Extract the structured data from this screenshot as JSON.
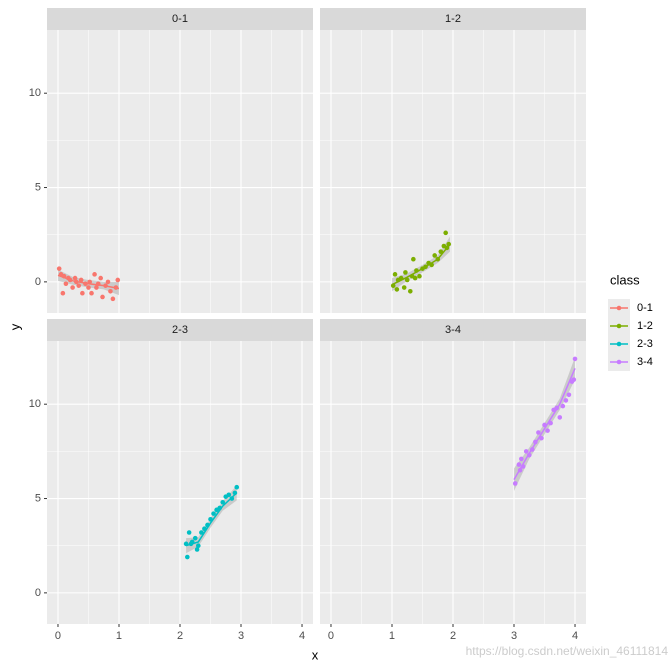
{
  "chart_data": {
    "type": "scatter",
    "facet": true,
    "xlabel": "x",
    "ylabel": "y",
    "legend_title": "class",
    "legend": "right",
    "grid": true,
    "xlim": [
      -0.18,
      4.18
    ],
    "xticks": [
      0,
      1,
      2,
      3,
      4
    ],
    "ylim": [
      -1.65,
      13.35
    ],
    "yticks": [
      0,
      5,
      10
    ],
    "watermark": "https://blog.csdn.net/weixin_46111814",
    "series": [
      {
        "name": "0-1",
        "color": "#F8766D",
        "x": [
          0.02,
          0.05,
          0.08,
          0.1,
          0.13,
          0.17,
          0.2,
          0.24,
          0.28,
          0.3,
          0.34,
          0.38,
          0.4,
          0.45,
          0.5,
          0.52,
          0.55,
          0.6,
          0.63,
          0.66,
          0.7,
          0.73,
          0.78,
          0.82,
          0.86,
          0.9,
          0.95,
          0.98
        ],
        "values": [
          0.7,
          0.4,
          -0.6,
          0.3,
          -0.1,
          0.2,
          0.1,
          -0.3,
          0.2,
          0.0,
          -0.2,
          0.1,
          -0.6,
          -0.1,
          -0.3,
          0.0,
          -0.6,
          0.4,
          -0.3,
          -0.1,
          0.2,
          -0.8,
          -0.2,
          0.0,
          -0.5,
          -0.9,
          -0.3,
          0.1
        ],
        "fit": {
          "x": [
            0,
            0.25,
            0.5,
            0.75,
            1
          ],
          "values": [
            0.35,
            0.05,
            -0.1,
            -0.2,
            -0.35
          ],
          "lower": [
            0.05,
            -0.15,
            -0.3,
            -0.4,
            -0.7
          ],
          "upper": [
            0.65,
            0.25,
            0.1,
            0.0,
            0.0
          ]
        }
      },
      {
        "name": "1-2",
        "color": "#7CAE00",
        "x": [
          1.02,
          1.05,
          1.08,
          1.1,
          1.15,
          1.2,
          1.22,
          1.25,
          1.3,
          1.33,
          1.35,
          1.38,
          1.4,
          1.45,
          1.5,
          1.55,
          1.6,
          1.65,
          1.7,
          1.75,
          1.8,
          1.85,
          1.88,
          1.9,
          1.93
        ],
        "values": [
          -0.2,
          0.4,
          -0.4,
          0.1,
          0.2,
          -0.3,
          0.5,
          0.1,
          -0.5,
          0.3,
          1.2,
          0.2,
          0.6,
          0.3,
          0.7,
          0.8,
          1.0,
          0.9,
          1.4,
          1.2,
          1.6,
          1.9,
          2.6,
          1.8,
          2.0
        ],
        "fit": {
          "x": [
            1,
            1.25,
            1.5,
            1.75,
            1.95
          ],
          "values": [
            -0.15,
            0.25,
            0.7,
            1.2,
            2.0
          ],
          "lower": [
            -0.5,
            0.05,
            0.5,
            1.0,
            1.6
          ],
          "upper": [
            0.2,
            0.45,
            0.9,
            1.4,
            2.4
          ]
        }
      },
      {
        "name": "2-3",
        "color": "#00BFC4",
        "x": [
          2.1,
          2.12,
          2.15,
          2.18,
          2.2,
          2.25,
          2.28,
          2.3,
          2.35,
          2.4,
          2.45,
          2.5,
          2.55,
          2.6,
          2.65,
          2.7,
          2.75,
          2.8,
          2.85,
          2.9,
          2.93
        ],
        "values": [
          2.6,
          1.9,
          3.2,
          2.6,
          2.7,
          2.9,
          2.3,
          2.5,
          3.2,
          3.4,
          3.6,
          3.9,
          4.2,
          4.4,
          4.5,
          4.8,
          5.1,
          5.2,
          5.0,
          5.3,
          5.6
        ],
        "fit": {
          "x": [
            2.1,
            2.3,
            2.5,
            2.7,
            2.93
          ],
          "values": [
            2.5,
            2.7,
            3.7,
            4.6,
            5.3
          ],
          "lower": [
            2.1,
            2.45,
            3.45,
            4.35,
            4.9
          ],
          "upper": [
            2.9,
            2.95,
            3.95,
            4.85,
            5.7
          ]
        }
      },
      {
        "name": "3-4",
        "color": "#C77CFF",
        "x": [
          3.02,
          3.08,
          3.1,
          3.12,
          3.15,
          3.2,
          3.25,
          3.3,
          3.35,
          3.4,
          3.45,
          3.5,
          3.55,
          3.6,
          3.65,
          3.7,
          3.75,
          3.8,
          3.85,
          3.9,
          3.95,
          3.98,
          4.0
        ],
        "values": [
          5.8,
          6.8,
          6.5,
          7.1,
          6.7,
          7.5,
          7.3,
          7.6,
          8.0,
          8.5,
          8.2,
          8.9,
          8.6,
          9.0,
          9.7,
          9.8,
          9.3,
          9.9,
          10.2,
          10.5,
          11.2,
          11.3,
          12.4
        ],
        "fit": {
          "x": [
            3.0,
            3.25,
            3.5,
            3.75,
            4.0
          ],
          "values": [
            6.0,
            7.4,
            8.7,
            10.0,
            11.9
          ],
          "lower": [
            5.4,
            7.1,
            8.4,
            9.7,
            11.3
          ],
          "upper": [
            6.6,
            7.7,
            9.0,
            10.3,
            12.5
          ]
        }
      }
    ]
  }
}
